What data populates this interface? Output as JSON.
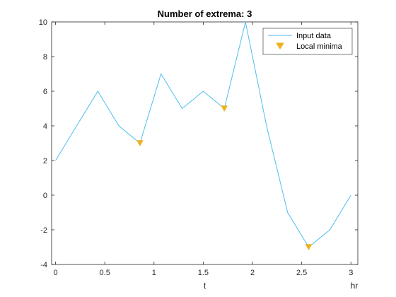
{
  "chart_data": {
    "type": "line",
    "title": "Number of extrema: 3",
    "xlabel": "t",
    "x_unit_label": "hr",
    "ylabel": "",
    "xlim": [
      -0.04,
      3.07
    ],
    "ylim": [
      -4,
      10
    ],
    "xticks": [
      0,
      0.5,
      1,
      1.5,
      2,
      2.5,
      3
    ],
    "xtick_labels": [
      "0",
      "0.5",
      "1",
      "1.5",
      "2",
      "2.5",
      "3"
    ],
    "yticks": [
      -4,
      -2,
      0,
      2,
      4,
      6,
      8,
      10
    ],
    "ytick_labels": [
      "-4",
      "-2",
      "0",
      "2",
      "4",
      "6",
      "8",
      "10"
    ],
    "grid": false,
    "legend_position": "top-right",
    "series": [
      {
        "name": "Input data",
        "color": "#4DBEEE",
        "marker": "none",
        "x": [
          0,
          0.214,
          0.429,
          0.643,
          0.857,
          1.071,
          1.286,
          1.5,
          1.714,
          1.929,
          2.143,
          2.357,
          2.571,
          2.786,
          3.0
        ],
        "y": [
          2,
          4,
          6,
          4,
          3,
          7,
          5,
          6,
          5,
          10,
          4,
          -1,
          -3,
          -2,
          0
        ]
      },
      {
        "name": "Local minima",
        "color": "#EDB120",
        "marker": "triangle-down",
        "line": "none",
        "x": [
          0.857,
          1.714,
          2.571
        ],
        "y": [
          3,
          5,
          -3
        ]
      }
    ]
  }
}
